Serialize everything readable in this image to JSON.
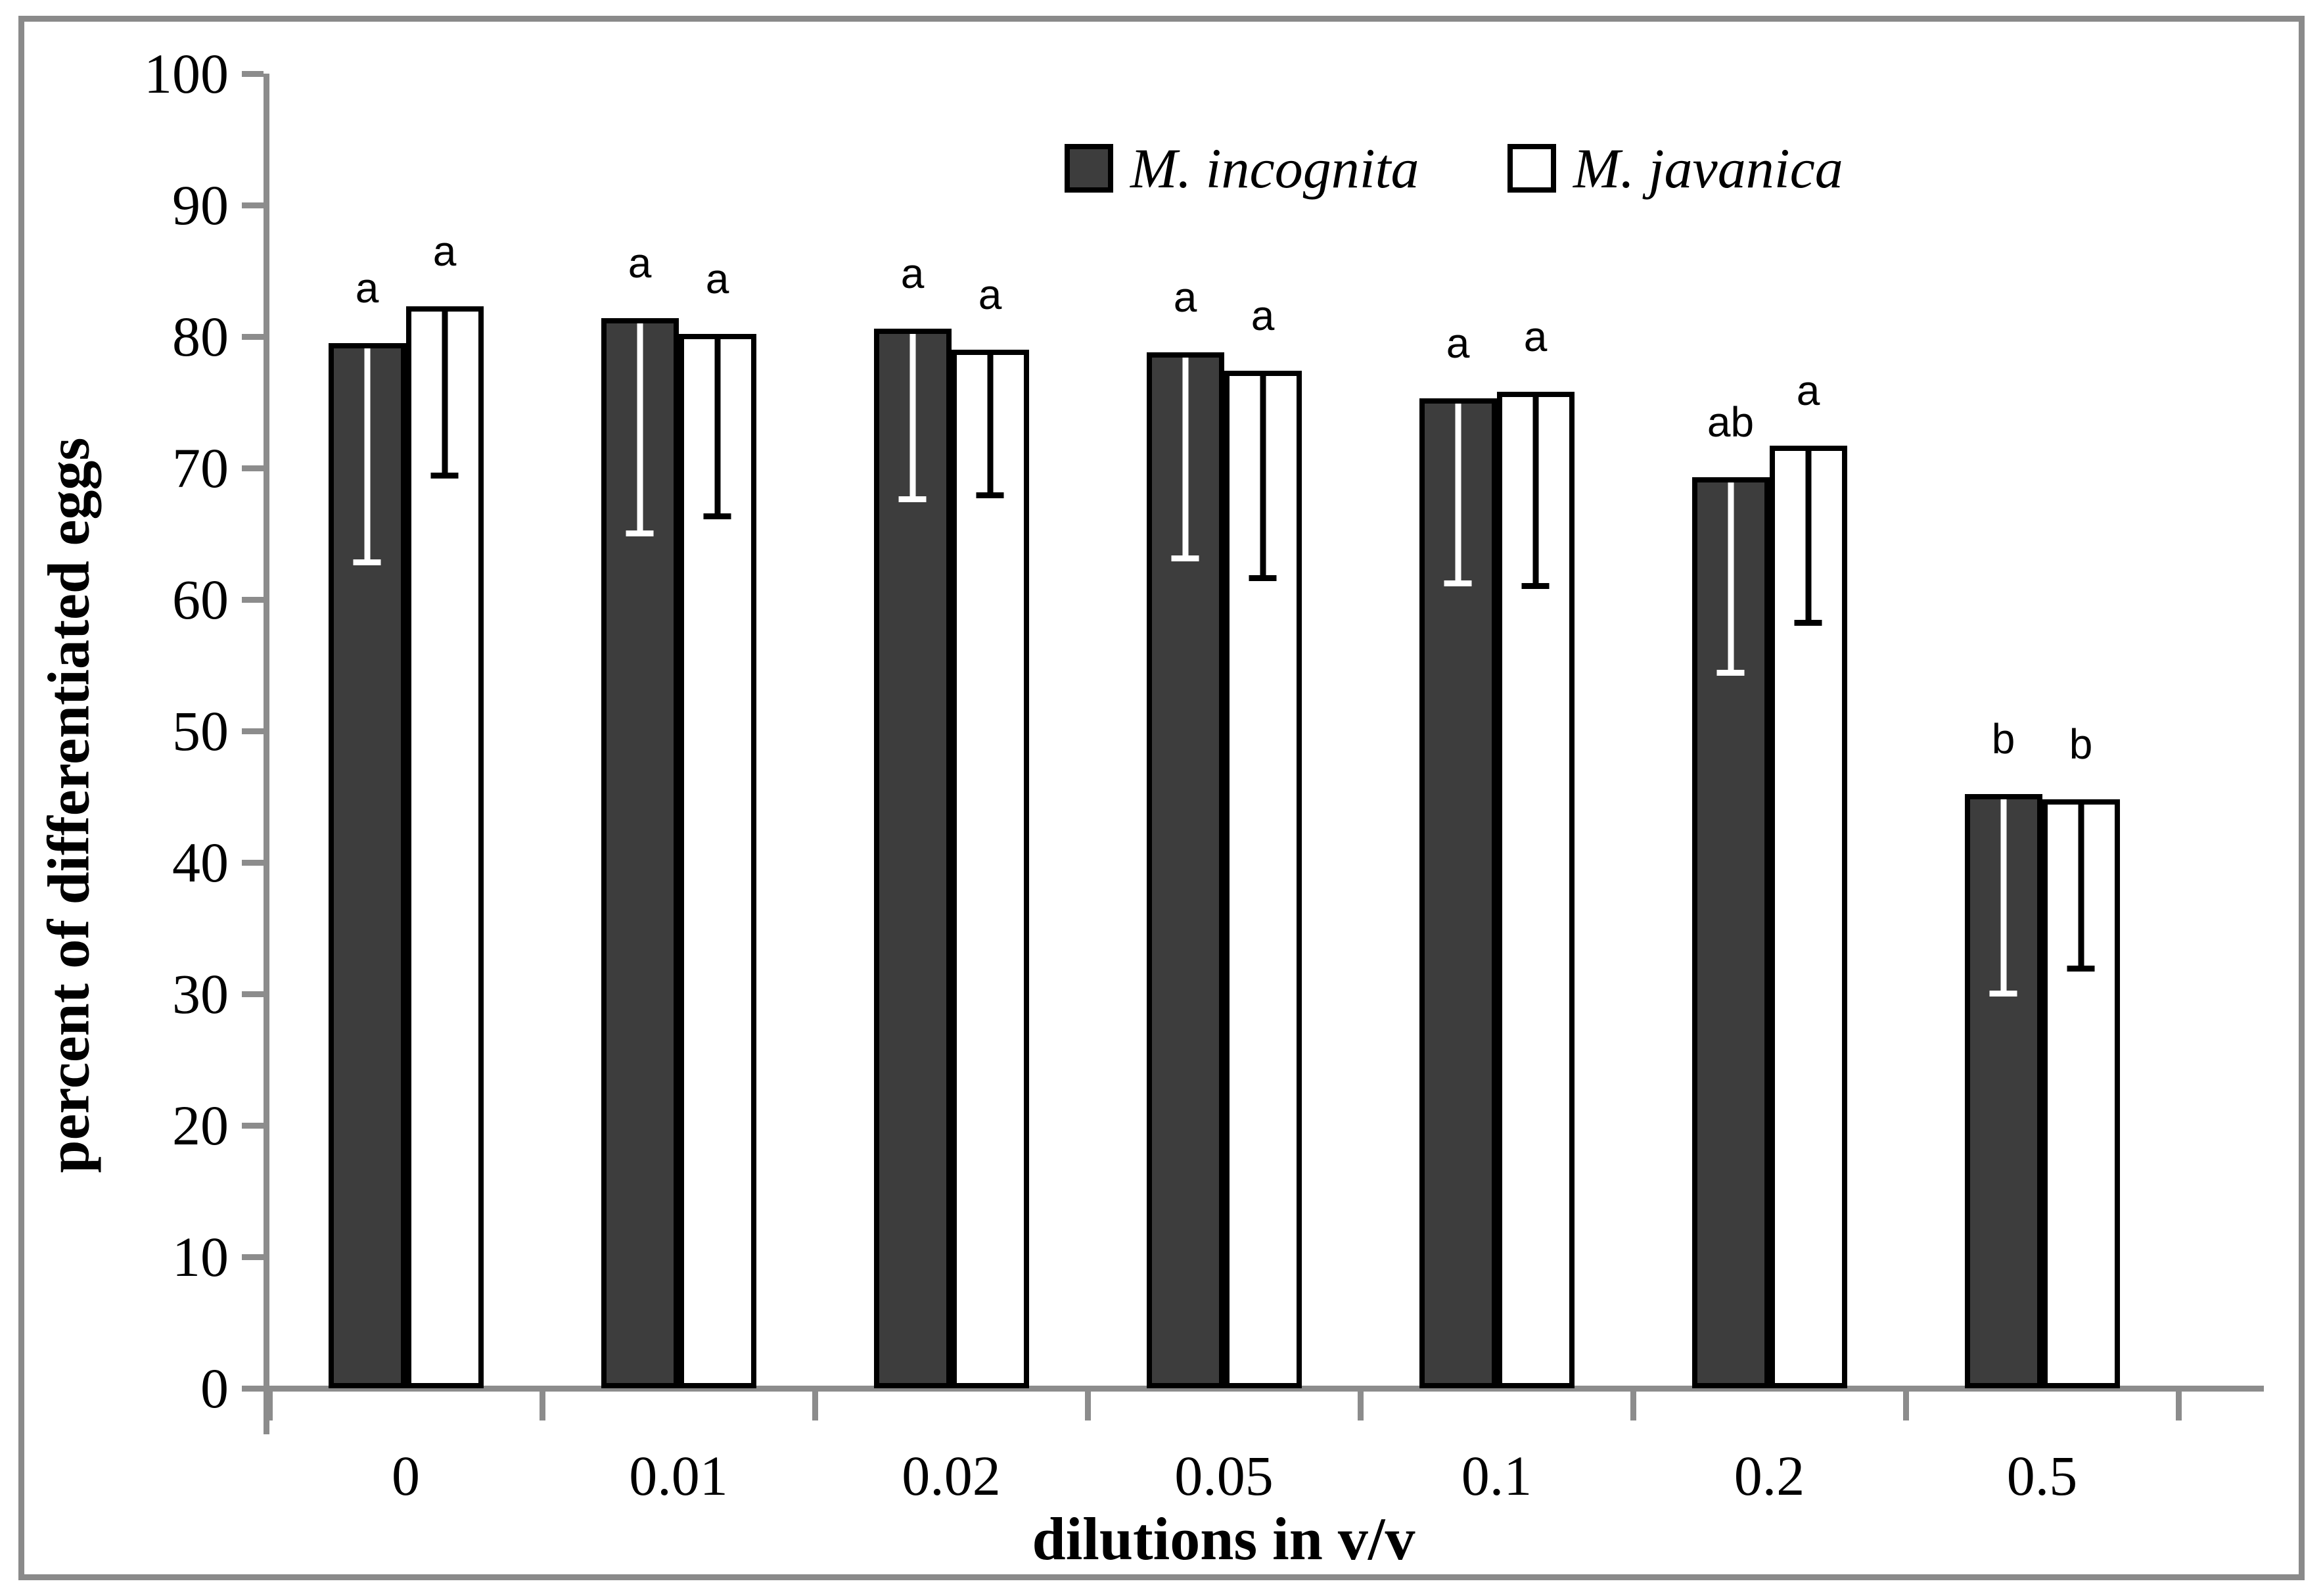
{
  "figure": {
    "frame_color": "#8a8a8a",
    "background": "#ffffff",
    "axis_color": "#8c8c8c"
  },
  "legend": {
    "items": [
      {
        "label": "M. incognita",
        "swatch": "filled-square",
        "fill": "#3d3d3d"
      },
      {
        "label": "M. javanica",
        "swatch": "open-square",
        "fill": "#ffffff"
      }
    ]
  },
  "chart_data": {
    "type": "bar",
    "title": "",
    "xlabel": "dilutions in v/v",
    "ylabel": "percent of differentiated eggs",
    "ylim": [
      0,
      100
    ],
    "yticks": [
      0,
      10,
      20,
      30,
      40,
      50,
      60,
      70,
      80,
      90,
      100
    ],
    "categories": [
      "0",
      "0.01",
      "0.02",
      "0.05",
      "0.1",
      "0.2",
      "0.5"
    ],
    "grid": false,
    "legend_position": "top-center",
    "error_bars": "lower-only",
    "series": [
      {
        "name": "M. incognita",
        "fill": "#3d3d3d",
        "stroke": "#000000",
        "whisker_color": "#ffffff",
        "values": [
          79.5,
          81.4,
          80.6,
          78.8,
          75.3,
          69.3,
          45.2
        ],
        "error_down": [
          16.5,
          16.2,
          12.8,
          15.5,
          13.9,
          14.7,
          15.0
        ],
        "letters": [
          "a",
          "a",
          "a",
          "a",
          "a",
          "ab",
          "b"
        ]
      },
      {
        "name": "M. javanica",
        "fill": "#ffffff",
        "stroke": "#000000",
        "whisker_color": "#000000",
        "values": [
          82.3,
          80.2,
          79.0,
          77.4,
          75.8,
          71.7,
          44.8
        ],
        "error_down": [
          12.7,
          13.7,
          10.9,
          15.6,
          14.6,
          13.3,
          12.7
        ],
        "letters": [
          "a",
          "a",
          "a",
          "a",
          "a",
          "a",
          "b"
        ]
      }
    ]
  }
}
